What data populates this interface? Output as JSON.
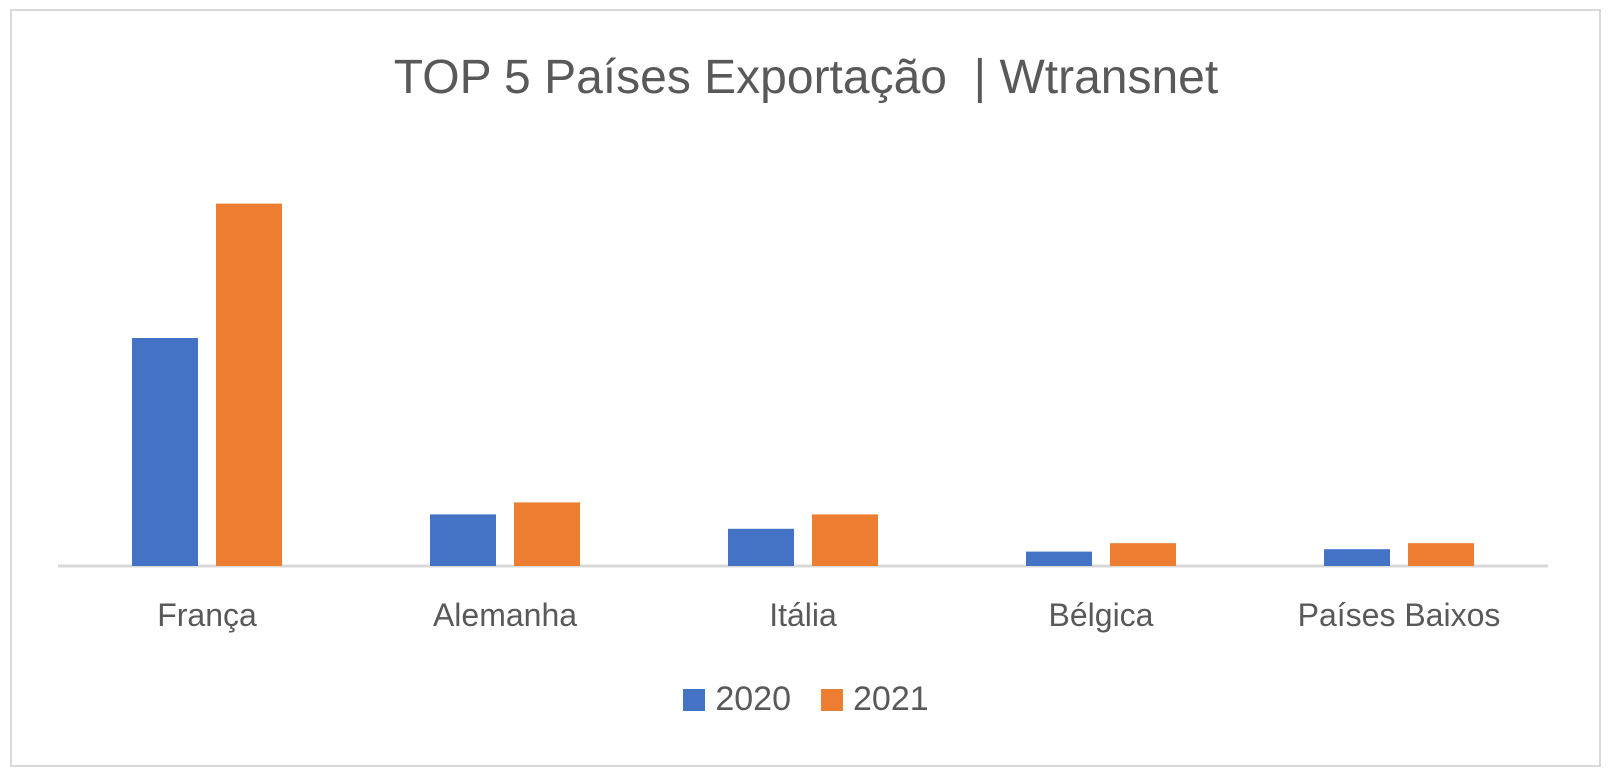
{
  "chart_data": {
    "type": "bar",
    "title": "TOP 5 Países Exportação  | Wtransnet",
    "categories": [
      "França",
      "Alemanha",
      "Itália",
      "Bélgica",
      "Países Baixos"
    ],
    "series": [
      {
        "name": "2020",
        "color": "#4472C4",
        "values": [
          19,
          4.3,
          3.1,
          1.2,
          1.4
        ]
      },
      {
        "name": "2021",
        "color": "#ED7D31",
        "values": [
          30.2,
          5.3,
          4.3,
          1.9,
          1.9
        ]
      }
    ],
    "xlabel": "",
    "ylabel": "",
    "ylim": [
      0,
      32
    ],
    "grid": false,
    "legend": "bottom"
  }
}
